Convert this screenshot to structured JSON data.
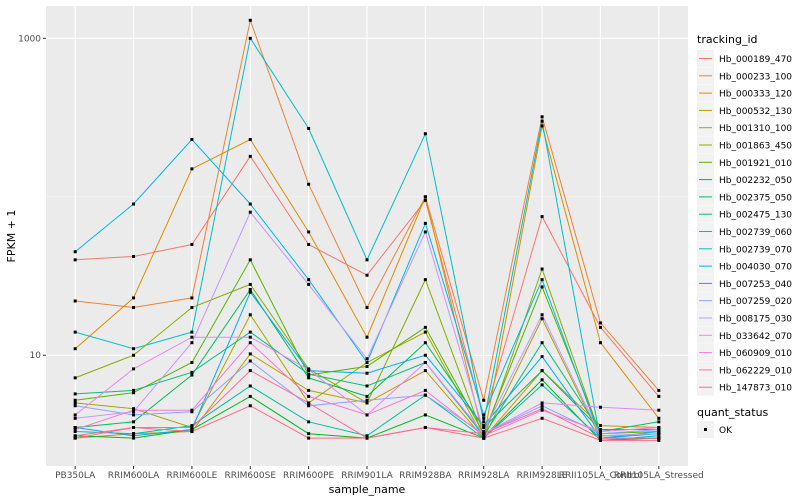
{
  "chart_data": {
    "type": "line",
    "xlabel": "sample_name",
    "ylabel": "FPKM + 1",
    "y_scale": "log10",
    "ylim": [
      2.0,
      1600
    ],
    "y_ticks": [
      {
        "value": 10,
        "label": "10"
      },
      {
        "value": 1000,
        "label": "1000"
      }
    ],
    "categories": [
      "PB350LA",
      "RRIM600LA",
      "RRIM600LE",
      "RRIM600SE",
      "RRIM600PE",
      "RRIM901LA",
      "RRIM928BA",
      "RRIM928LA",
      "RRIM928LE",
      "RRII105LA_Control",
      "RRII105LA_Stressed"
    ],
    "grid": true,
    "legend_position": "right",
    "legend_title": "tracking_id",
    "shape_legend_title": "quant_status",
    "shape_legend_label": "OK",
    "series": [
      {
        "name": "Hb_000189_470",
        "color": "#F8766D",
        "values": [
          40,
          42,
          50,
          180,
          50,
          32,
          95,
          4,
          75,
          15,
          5.5
        ]
      },
      {
        "name": "Hb_000233_100",
        "color": "#EB8335",
        "values": [
          22,
          20,
          23,
          1300,
          120,
          20,
          100,
          5.2,
          320,
          16,
          6
        ]
      },
      {
        "name": "Hb_000333_120",
        "color": "#DA8F00",
        "values": [
          11,
          23,
          150,
          230,
          60,
          13,
          100,
          3,
          280,
          12,
          4
        ]
      },
      {
        "name": "Hb_000532_130",
        "color": "#C49A00",
        "values": [
          3,
          3.2,
          3.3,
          10.2,
          6,
          5,
          8,
          3,
          8,
          3.6,
          3.5
        ]
      },
      {
        "name": "Hb_001310_100",
        "color": "#A9A400",
        "values": [
          5,
          4.6,
          3.5,
          18,
          5,
          9,
          14,
          3,
          17,
          3,
          3
        ]
      },
      {
        "name": "Hb_001863_450",
        "color": "#86AC00",
        "values": [
          7.2,
          10,
          20,
          28,
          8.2,
          5,
          30,
          3,
          35,
          3.1,
          3.2
        ]
      },
      {
        "name": "Hb_001921_010",
        "color": "#53B400",
        "values": [
          5.2,
          5.8,
          9,
          40,
          7.5,
          8.5,
          15,
          3.2,
          27,
          3.2,
          3.3
        ]
      },
      {
        "name": "Hb_002232_050",
        "color": "#00B81F",
        "values": [
          3.1,
          3,
          3.4,
          5.5,
          3.2,
          3,
          4.2,
          3,
          7,
          2.9,
          3
        ]
      },
      {
        "name": "Hb_002375_050",
        "color": "#00BC56",
        "values": [
          3.5,
          3.8,
          7.5,
          26,
          7.2,
          5.5,
          12,
          3.5,
          8,
          3.4,
          3.4
        ]
      },
      {
        "name": "Hb_002475_130",
        "color": "#00BF7D",
        "values": [
          5.7,
          6,
          7.8,
          14,
          7.6,
          6.4,
          9,
          3.1,
          12,
          3.3,
          3.8
        ]
      },
      {
        "name": "Hb_002739_060",
        "color": "#00C19F",
        "values": [
          3.3,
          3.2,
          3.6,
          6.4,
          3.8,
          3.1,
          5.6,
          3,
          6.5,
          3,
          3
        ]
      },
      {
        "name": "Hb_002739_070",
        "color": "#00BFC4",
        "values": [
          14,
          11,
          14,
          1000,
          270,
          40,
          250,
          3.8,
          300,
          2.9,
          3.1
        ]
      },
      {
        "name": "Hb_004030_070",
        "color": "#00B8E5",
        "values": [
          45,
          90,
          230,
          90,
          30,
          9,
          68,
          4.2,
          30,
          3,
          3.3
        ]
      },
      {
        "name": "Hb_007253_040",
        "color": "#00A9FF",
        "values": [
          3.5,
          3.1,
          3.4,
          25,
          8,
          7.7,
          10,
          3.6,
          9.8,
          3,
          3.2
        ]
      },
      {
        "name": "Hb_007259_020",
        "color": "#8AA4FF",
        "values": [
          4.8,
          4.2,
          4.4,
          9.2,
          4.8,
          5.2,
          5.6,
          3.2,
          4.8,
          3.2,
          3.4
        ]
      },
      {
        "name": "Hb_008175_030",
        "color": "#C495FF",
        "values": [
          4,
          4.4,
          12,
          80,
          28,
          9.5,
          60,
          3.3,
          18,
          3.1,
          3.2
        ]
      },
      {
        "name": "Hb_033642_070",
        "color": "#E685FF",
        "values": [
          4.2,
          8.2,
          13,
          13,
          8.1,
          4.2,
          9,
          3.2,
          5,
          4.7,
          4.5
        ]
      },
      {
        "name": "Hb_060909_010",
        "color": "#FA77D6",
        "values": [
          3.4,
          4.5,
          4.5,
          12,
          5.5,
          4.2,
          6,
          3.1,
          4.5,
          3.3,
          3.5
        ]
      },
      {
        "name": "Hb_062229_010",
        "color": "#FF6CA5",
        "values": [
          3.1,
          3.5,
          3.5,
          8,
          5,
          3,
          3.5,
          3.2,
          4.6,
          3,
          3
        ]
      },
      {
        "name": "Hb_147873_010",
        "color": "#FF6C86",
        "values": [
          3,
          3.5,
          3.3,
          4.8,
          3,
          3,
          3.5,
          3,
          4,
          2.9,
          2.9
        ]
      }
    ]
  }
}
